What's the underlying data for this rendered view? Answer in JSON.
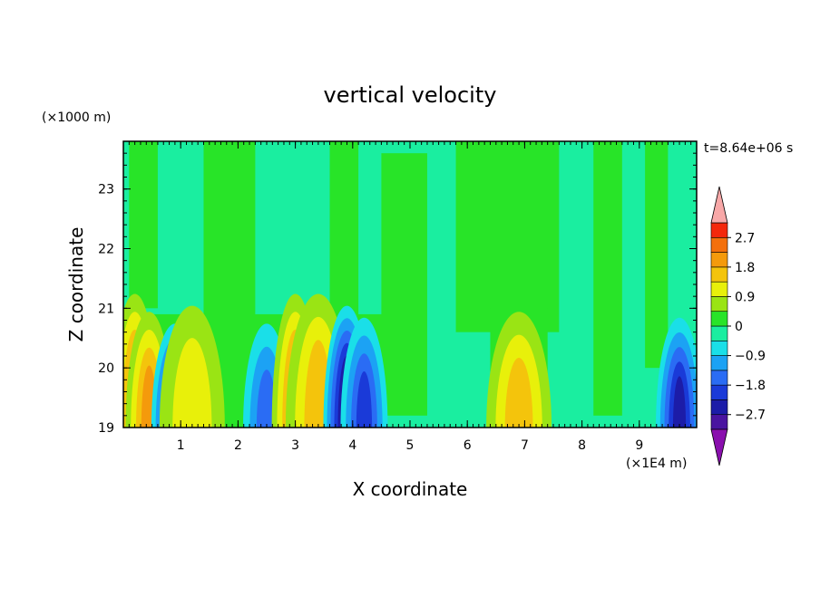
{
  "chart_data": {
    "type": "heatmap",
    "title": "vertical velocity",
    "time_label": "t=8.64e+06 s",
    "xlabel": "X coordinate",
    "ylabel": "Z coordinate",
    "x_unit": "(×1E4 m)",
    "y_unit": "(×1000 m)",
    "xlim": [
      0,
      10
    ],
    "ylim": [
      19,
      23.8
    ],
    "x_ticks": [
      "1",
      "2",
      "3",
      "4",
      "5",
      "6",
      "7",
      "8",
      "9"
    ],
    "y_ticks": [
      "19",
      "20",
      "21",
      "22",
      "23"
    ],
    "colorbar": {
      "levels": [
        -3.15,
        -2.7,
        -2.25,
        -1.8,
        -1.35,
        -0.9,
        -0.45,
        0,
        0.45,
        0.9,
        1.35,
        1.8,
        2.25,
        2.7,
        3.15
      ],
      "labels": [
        "2.7",
        "1.8",
        "0.9",
        "0",
        "−0.9",
        "−1.8",
        "−2.7"
      ],
      "colors": [
        "#8a0fae",
        "#4a14a0",
        "#1c1ca8",
        "#1a3ad8",
        "#2a6cf4",
        "#1ca2f4",
        "#1adfe8",
        "#1aeea0",
        "#28e428",
        "#9ae414",
        "#e8f00a",
        "#f4c40c",
        "#f49a0c",
        "#f4700c",
        "#f4280c",
        "#f8a8a8"
      ],
      "under_color": "#8a0fae",
      "over_color": "#f8a8a8"
    },
    "features": [
      {
        "x": 0.2,
        "z": 19.8,
        "value": 1.8
      },
      {
        "x": 0.45,
        "z": 19.5,
        "value": 2.1
      },
      {
        "x": 0.9,
        "z": 19.3,
        "value": -2.6
      },
      {
        "x": 1.2,
        "z": 19.6,
        "value": 1.2
      },
      {
        "x": 2.5,
        "z": 19.3,
        "value": -1.7
      },
      {
        "x": 3.0,
        "z": 19.8,
        "value": 2.2
      },
      {
        "x": 3.4,
        "z": 19.8,
        "value": 1.5
      },
      {
        "x": 3.9,
        "z": 19.6,
        "value": -2.7
      },
      {
        "x": 4.2,
        "z": 19.4,
        "value": -2.2
      },
      {
        "x": 6.9,
        "z": 19.5,
        "value": 1.4
      },
      {
        "x": 9.7,
        "z": 19.4,
        "value": -2.5
      }
    ]
  }
}
